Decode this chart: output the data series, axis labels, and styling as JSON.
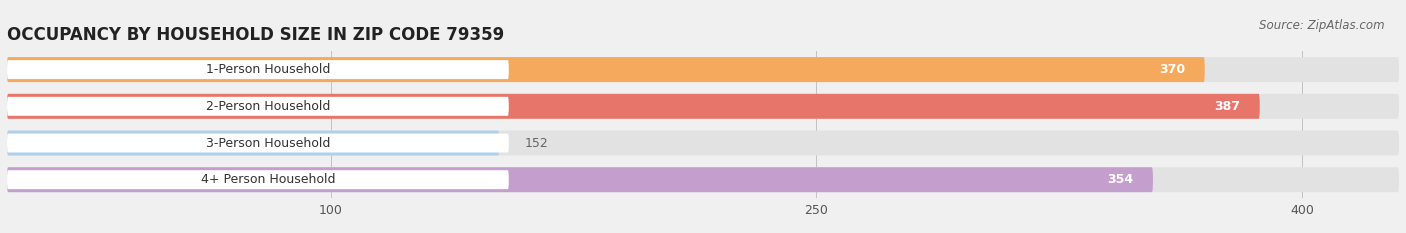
{
  "title": "OCCUPANCY BY HOUSEHOLD SIZE IN ZIP CODE 79359",
  "source": "Source: ZipAtlas.com",
  "categories": [
    "1-Person Household",
    "2-Person Household",
    "3-Person Household",
    "4+ Person Household"
  ],
  "values": [
    370,
    387,
    152,
    354
  ],
  "bar_colors": [
    "#F5A95D",
    "#E8756A",
    "#AED0EA",
    "#C49FCD"
  ],
  "xlim": [
    0,
    430
  ],
  "xticks": [
    100,
    250,
    400
  ],
  "background_color": "#F0F0F0",
  "bar_bg_color": "#E2E2E2",
  "value_label_color_inside": "#FFFFFF",
  "value_label_color_outside": "#666666",
  "title_fontsize": 12,
  "source_fontsize": 8.5,
  "bar_label_fontsize": 9,
  "value_fontsize": 9,
  "bar_height": 0.68,
  "bar_gap": 0.32
}
